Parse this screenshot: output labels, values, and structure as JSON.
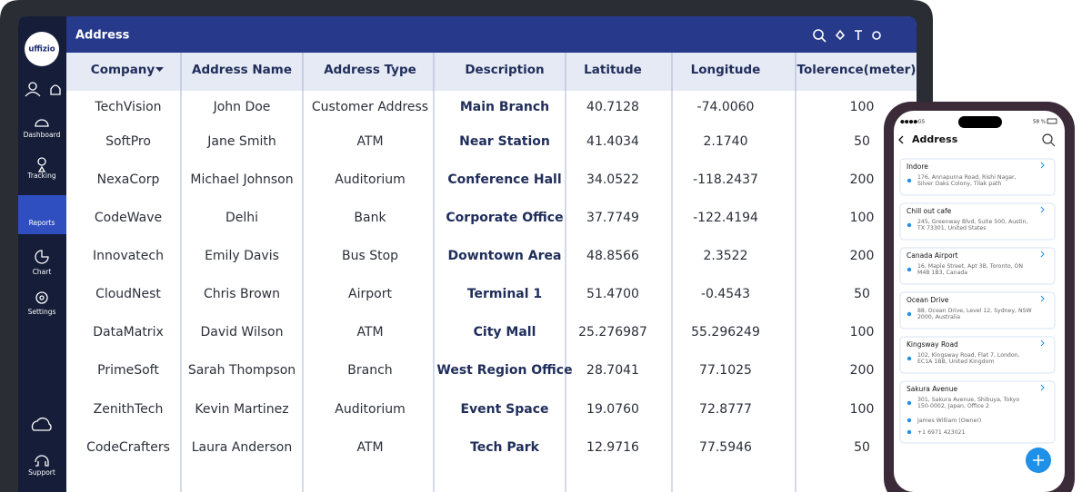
{
  "sidebar": {
    "logo": "uffizio",
    "items": [
      "Dashboard",
      "Tracking",
      "Reports",
      "Chart",
      "Settings",
      "Support"
    ]
  },
  "header": {
    "title": "Address"
  },
  "table": {
    "columns": [
      "Company",
      "Address Name",
      "Address Type",
      "Description",
      "Latitude",
      "Longitude",
      "Tolerence(meter)"
    ],
    "rows": [
      [
        "TechVision",
        "John Doe",
        "Customer Address",
        "Main Branch",
        "40.7128",
        "-74.0060",
        "100"
      ],
      [
        "SoftPro",
        "Jane Smith",
        "ATM",
        "Near Station",
        "41.4034",
        "2.1740",
        "50"
      ],
      [
        "NexaCorp",
        "Michael Johnson",
        "Auditorium",
        "Conference Hall",
        "34.0522",
        "-118.2437",
        "200"
      ],
      [
        "CodeWave",
        "Delhi",
        "Bank",
        "Corporate Office",
        "37.7749",
        "-122.4194",
        "100"
      ],
      [
        "Innovatech",
        "Emily Davis",
        "Bus Stop",
        "Downtown Area",
        "48.8566",
        "2.3522",
        "200"
      ],
      [
        "CloudNest",
        "Chris Brown",
        "Airport",
        "Terminal 1",
        "51.4700",
        "-0.4543",
        "50"
      ],
      [
        "DataMatrix",
        "David Wilson",
        "ATM",
        "City Mall",
        "25.276987",
        "55.296249",
        "100"
      ],
      [
        "PrimeSoft",
        "Sarah Thompson",
        "Branch",
        "West Region Office",
        "28.7041",
        "77.1025",
        "200"
      ],
      [
        "ZenithTech",
        "Kevin Martinez",
        "Auditorium",
        "Event Space",
        "19.0760",
        "72.8777",
        "100"
      ],
      [
        "CodeCrafters",
        "Laura Anderson",
        "ATM",
        "Tech Park",
        "12.9716",
        "77.5946",
        "50"
      ]
    ]
  },
  "phone": {
    "status": {
      "carrier": "●●●●GS",
      "battery": "58 %"
    },
    "title": "Address",
    "cards": [
      {
        "name": "Indore",
        "address_lines": [
          "176, Annapurna Road, Rishi Nagar,",
          "Silver Oaks Colony, Tilak path"
        ]
      },
      {
        "name": "Chill out cafe",
        "address_lines": [
          "245, Greenway Blvd, Suite 500, Austin,",
          "TX 73301, United States"
        ]
      },
      {
        "name": "Canada Airport",
        "address_lines": [
          "16, Maple Street, Apt 3B, Toronto, ON",
          "M4B 1B3, Canada"
        ]
      },
      {
        "name": "Ocean Drive",
        "address_lines": [
          "88, Ocean Drive, Level 12, Sydney, NSW",
          "2000, Australia"
        ]
      },
      {
        "name": "Kingsway Road",
        "address_lines": [
          "102, Kingsway Road, Flat 7, London,",
          "EC1A 1BB, United Kingdom"
        ]
      },
      {
        "name": "Sakura Avenue",
        "address_lines": [
          "301, Sakura Avenue, Shibuya, Tokyo",
          "150-0002, Japan, Office 2"
        ],
        "owner": "James William (Owner)",
        "phone": "+1 6971 423021"
      }
    ]
  }
}
